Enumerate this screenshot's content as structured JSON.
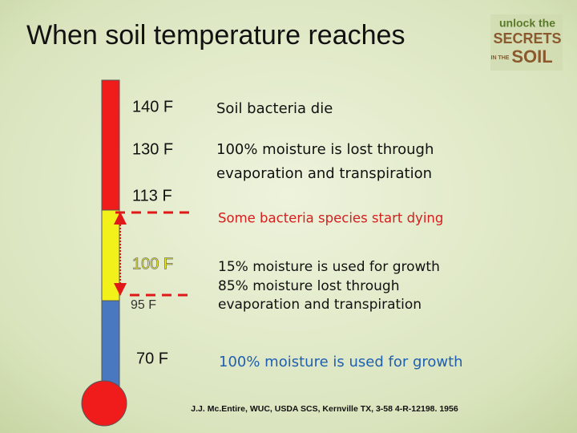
{
  "title": "When soil temperature reaches",
  "logo": {
    "lines": [
      "unlock the",
      "SECRETS",
      "IN THE",
      "SOIL"
    ]
  },
  "temperatures": [
    "140 F",
    "130 F",
    "113 F",
    "100 F",
    "95 F",
    "70 F"
  ],
  "descriptions": [
    [
      "Soil bacteria die"
    ],
    [
      "100% moisture is lost through",
      "evaporation and transpiration"
    ],
    [
      "Some bacteria species start dying"
    ],
    [
      "15% moisture is used for growth",
      "85% moisture lost through",
      "evaporation and transpiration"
    ],
    [
      "100% moisture is used for growth"
    ]
  ],
  "citation": "J.J. Mc.Entire, WUC, USDA SCS, Kernville TX, 3-58 4-R-12198. 1956"
}
